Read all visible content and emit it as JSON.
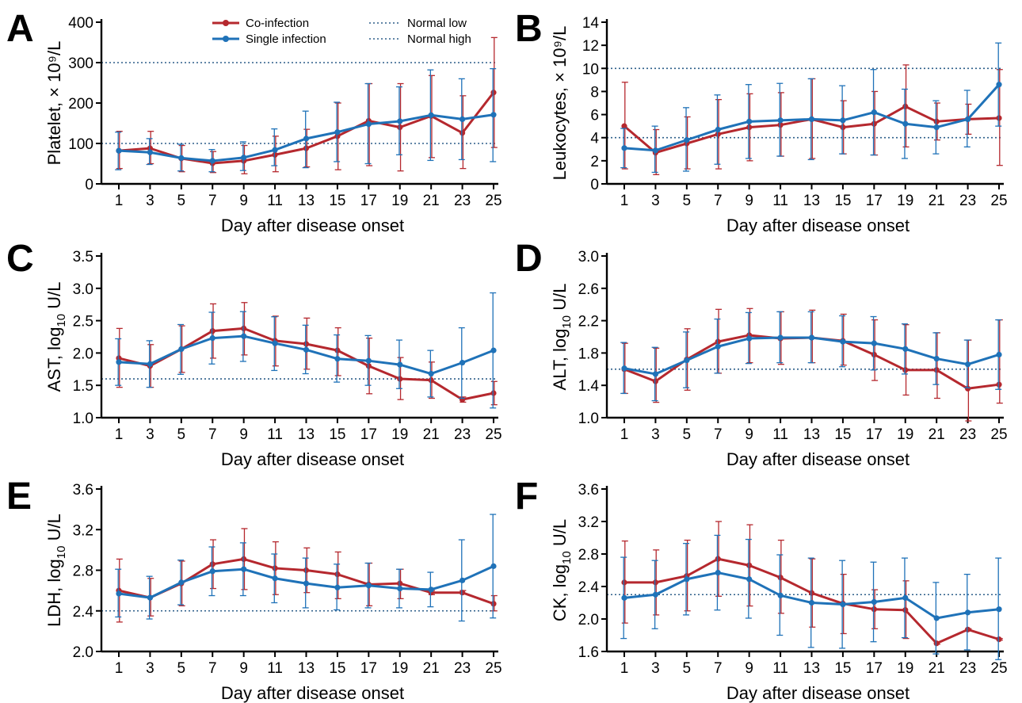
{
  "colors": {
    "coinfection": "#b5282e",
    "single": "#1f72b8",
    "reference": "#2e5f8a"
  },
  "legend": {
    "coinfection": "Co-infection",
    "single": "Single infection",
    "normal_low": "Normal low",
    "normal_high": "Normal high"
  },
  "chart_data": [
    {
      "panel": "A",
      "type": "line",
      "xlabel": "Day after disease onset",
      "ylabel": "Platelet, × 10⁹/L",
      "x": [
        1,
        3,
        5,
        7,
        9,
        11,
        13,
        15,
        17,
        19,
        21,
        23,
        25
      ],
      "ylim": [
        0,
        400
      ],
      "yticks": [
        0,
        100,
        200,
        300,
        400
      ],
      "ytick_labels": [
        "0",
        "100",
        "200",
        "300",
        "400"
      ],
      "reference_lines": [
        100,
        300
      ],
      "series": [
        {
          "name": "Co-infection",
          "values": [
            82,
            88,
            63,
            51,
            57,
            72,
            88,
            118,
            156,
            140,
            168,
            126,
            226
          ],
          "lower": [
            38,
            50,
            30,
            28,
            25,
            30,
            42,
            35,
            45,
            32,
            65,
            38,
            90
          ],
          "upper": [
            130,
            130,
            95,
            80,
            95,
            118,
            135,
            200,
            248,
            248,
            268,
            218,
            362
          ]
        },
        {
          "name": "Single infection",
          "values": [
            82,
            78,
            64,
            57,
            65,
            84,
            112,
            128,
            148,
            155,
            170,
            160,
            171
          ],
          "lower": [
            35,
            48,
            32,
            30,
            33,
            45,
            40,
            55,
            50,
            72,
            58,
            60,
            55
          ],
          "upper": [
            128,
            112,
            98,
            85,
            104,
            136,
            180,
            202,
            248,
            240,
            282,
            260,
            285
          ]
        }
      ]
    },
    {
      "panel": "B",
      "type": "line",
      "xlabel": "Day after disease onset",
      "ylabel": "Leukocytes, × 10⁹/L",
      "x": [
        1,
        3,
        5,
        7,
        9,
        11,
        13,
        15,
        17,
        19,
        21,
        23,
        25
      ],
      "ylim": [
        0,
        14
      ],
      "yticks": [
        0,
        2,
        4,
        6,
        8,
        10,
        12,
        14
      ],
      "ytick_labels": [
        "0",
        "2",
        "4",
        "6",
        "8",
        "10",
        "12",
        "14"
      ],
      "reference_lines": [
        4,
        10
      ],
      "series": [
        {
          "name": "Co-infection",
          "values": [
            5.0,
            2.7,
            3.5,
            4.3,
            4.9,
            5.1,
            5.6,
            4.9,
            5.2,
            6.7,
            5.4,
            5.6,
            5.7
          ],
          "lower": [
            1.3,
            0.8,
            1.3,
            1.3,
            2.0,
            2.4,
            2.2,
            2.6,
            2.5,
            3.2,
            3.8,
            4.3,
            1.6
          ],
          "upper": [
            8.8,
            4.7,
            5.8,
            7.3,
            7.8,
            7.9,
            9.1,
            7.2,
            8.0,
            10.3,
            7.0,
            6.9,
            9.9
          ]
        },
        {
          "name": "Single infection",
          "values": [
            3.1,
            2.9,
            3.8,
            4.7,
            5.4,
            5.5,
            5.6,
            5.5,
            6.2,
            5.2,
            4.9,
            5.6,
            8.6
          ],
          "lower": [
            1.4,
            1.0,
            1.1,
            1.7,
            2.2,
            2.4,
            2.1,
            2.6,
            2.5,
            2.2,
            2.6,
            3.2,
            5.0
          ],
          "upper": [
            4.8,
            5.0,
            6.6,
            7.7,
            8.6,
            8.7,
            9.1,
            8.5,
            9.9,
            8.2,
            7.2,
            8.1,
            12.2
          ]
        }
      ]
    },
    {
      "panel": "C",
      "type": "line",
      "xlabel": "Day after disease onset",
      "ylabel_main": "AST, log",
      "ylabel_sub": "10",
      "ylabel_unit": " U/L",
      "x": [
        1,
        3,
        5,
        7,
        9,
        11,
        13,
        15,
        17,
        19,
        21,
        23,
        25
      ],
      "ylim": [
        1.0,
        3.5
      ],
      "yticks": [
        1.0,
        1.5,
        2.0,
        2.5,
        3.0,
        3.5
      ],
      "ytick_labels": [
        "1.0",
        "1.5",
        "2.0",
        "2.5",
        "3.0",
        "3.5"
      ],
      "reference_lines": [
        1.6
      ],
      "series": [
        {
          "name": "Co-infection",
          "values": [
            1.92,
            1.8,
            2.06,
            2.34,
            2.38,
            2.19,
            2.14,
            2.04,
            1.8,
            1.6,
            1.58,
            1.28,
            1.38
          ],
          "lower": [
            1.47,
            1.47,
            1.7,
            1.92,
            1.97,
            1.8,
            1.75,
            1.65,
            1.37,
            1.28,
            1.3,
            1.24,
            1.2
          ],
          "upper": [
            2.38,
            2.13,
            2.42,
            2.76,
            2.78,
            2.57,
            2.54,
            2.39,
            2.23,
            1.93,
            1.86,
            1.32,
            1.56
          ]
        },
        {
          "name": "Single infection",
          "values": [
            1.86,
            1.83,
            2.06,
            2.23,
            2.26,
            2.15,
            2.05,
            1.91,
            1.88,
            1.82,
            1.68,
            1.85,
            2.04
          ],
          "lower": [
            1.5,
            1.47,
            1.67,
            1.83,
            1.87,
            1.73,
            1.68,
            1.55,
            1.5,
            1.45,
            1.32,
            1.3,
            1.15
          ],
          "upper": [
            2.22,
            2.19,
            2.44,
            2.63,
            2.64,
            2.56,
            2.43,
            2.28,
            2.27,
            2.2,
            2.04,
            2.39,
            2.93
          ]
        }
      ]
    },
    {
      "panel": "D",
      "type": "line",
      "xlabel": "Day after disease onset",
      "ylabel_main": "ALT, log",
      "ylabel_sub": "10",
      "ylabel_unit": " U/L",
      "x": [
        1,
        3,
        5,
        7,
        9,
        11,
        13,
        15,
        17,
        19,
        21,
        23,
        25
      ],
      "ylim": [
        1.0,
        3.0
      ],
      "yticks": [
        1.0,
        1.4,
        1.8,
        2.2,
        2.6,
        3.0
      ],
      "ytick_labels": [
        "1.0",
        "1.4",
        "1.8",
        "2.2",
        "2.6",
        "3.0"
      ],
      "reference_lines": [
        1.6
      ],
      "series": [
        {
          "name": "Co-infection",
          "values": [
            1.6,
            1.45,
            1.72,
            1.94,
            2.02,
            1.98,
            1.99,
            1.95,
            1.78,
            1.59,
            1.59,
            1.36,
            1.41
          ],
          "lower": [
            1.3,
            1.19,
            1.34,
            1.55,
            1.68,
            1.66,
            1.68,
            1.65,
            1.46,
            1.28,
            1.24,
            0.96,
            1.18
          ],
          "upper": [
            1.92,
            1.86,
            2.1,
            2.34,
            2.35,
            2.31,
            2.33,
            2.28,
            2.21,
            2.15,
            2.05,
            1.96,
            2.21
          ]
        },
        {
          "name": "Single infection",
          "values": [
            1.61,
            1.54,
            1.71,
            1.88,
            1.98,
            1.99,
            1.99,
            1.94,
            1.92,
            1.85,
            1.73,
            1.66,
            1.78
          ],
          "lower": [
            1.3,
            1.21,
            1.37,
            1.55,
            1.67,
            1.68,
            1.68,
            1.63,
            1.59,
            1.54,
            1.41,
            1.37,
            1.35
          ],
          "upper": [
            1.93,
            1.87,
            2.06,
            2.22,
            2.3,
            2.31,
            2.31,
            2.26,
            2.25,
            2.16,
            2.05,
            1.96,
            2.21
          ]
        }
      ]
    },
    {
      "panel": "E",
      "type": "line",
      "xlabel": "Day after disease onset",
      "ylabel_main": "LDH, log",
      "ylabel_sub": "10",
      "ylabel_unit": " U/L",
      "x": [
        1,
        3,
        5,
        7,
        9,
        11,
        13,
        15,
        17,
        19,
        21,
        23,
        25
      ],
      "ylim": [
        2.0,
        3.6
      ],
      "yticks": [
        2.0,
        2.4,
        2.8,
        3.2,
        3.6
      ],
      "ytick_labels": [
        "2.0",
        "2.4",
        "2.8",
        "3.2",
        "3.6"
      ],
      "reference_lines": [
        2.4
      ],
      "series": [
        {
          "name": "Co-infection",
          "values": [
            2.6,
            2.53,
            2.67,
            2.86,
            2.91,
            2.82,
            2.8,
            2.76,
            2.66,
            2.67,
            2.58,
            2.58,
            2.47
          ],
          "lower": [
            2.29,
            2.35,
            2.45,
            2.62,
            2.61,
            2.56,
            2.58,
            2.52,
            2.45,
            2.52,
            2.56,
            2.57,
            2.4
          ],
          "upper": [
            2.91,
            2.72,
            2.89,
            3.1,
            3.21,
            3.08,
            3.02,
            2.98,
            2.87,
            2.81,
            2.6,
            2.6,
            2.55
          ]
        },
        {
          "name": "Single infection",
          "values": [
            2.57,
            2.53,
            2.68,
            2.79,
            2.81,
            2.72,
            2.67,
            2.63,
            2.65,
            2.62,
            2.61,
            2.7,
            2.84
          ],
          "lower": [
            2.34,
            2.32,
            2.46,
            2.55,
            2.55,
            2.48,
            2.43,
            2.41,
            2.43,
            2.43,
            2.44,
            2.3,
            2.33
          ],
          "upper": [
            2.81,
            2.74,
            2.9,
            3.03,
            3.07,
            2.96,
            2.92,
            2.86,
            2.87,
            2.81,
            2.78,
            3.1,
            3.35
          ]
        }
      ]
    },
    {
      "panel": "F",
      "type": "line",
      "xlabel": "Day after disease onset",
      "ylabel_main": "CK, log",
      "ylabel_sub": "10",
      "ylabel_unit": " U/L",
      "x": [
        1,
        3,
        5,
        7,
        9,
        11,
        13,
        15,
        17,
        19,
        21,
        23,
        25
      ],
      "ylim": [
        1.6,
        3.6
      ],
      "yticks": [
        1.6,
        2.0,
        2.4,
        2.8,
        3.2,
        3.6
      ],
      "ytick_labels": [
        "1.6",
        "2.0",
        "2.4",
        "2.8",
        "3.2",
        "3.6"
      ],
      "reference_lines": [
        2.3
      ],
      "series": [
        {
          "name": "Co-infection",
          "values": [
            2.45,
            2.45,
            2.53,
            2.74,
            2.66,
            2.51,
            2.32,
            2.19,
            2.12,
            2.11,
            1.7,
            1.87,
            1.75
          ],
          "lower": [
            1.95,
            2.05,
            2.1,
            2.28,
            2.16,
            2.07,
            1.9,
            1.82,
            1.88,
            1.76,
            1.69,
            1.86,
            1.74
          ],
          "upper": [
            2.96,
            2.85,
            2.97,
            3.2,
            3.16,
            2.97,
            2.74,
            2.55,
            2.36,
            2.47,
            1.71,
            1.88,
            1.76
          ]
        },
        {
          "name": "Single infection",
          "values": [
            2.26,
            2.3,
            2.49,
            2.57,
            2.49,
            2.29,
            2.2,
            2.18,
            2.21,
            2.26,
            2.01,
            2.08,
            2.12
          ],
          "lower": [
            1.76,
            1.88,
            2.05,
            2.11,
            2.01,
            1.8,
            1.65,
            1.64,
            1.72,
            1.77,
            1.57,
            1.62,
            1.5
          ],
          "upper": [
            2.76,
            2.72,
            2.93,
            3.03,
            2.98,
            2.79,
            2.75,
            2.72,
            2.7,
            2.75,
            2.45,
            2.55,
            2.75
          ]
        }
      ]
    }
  ]
}
